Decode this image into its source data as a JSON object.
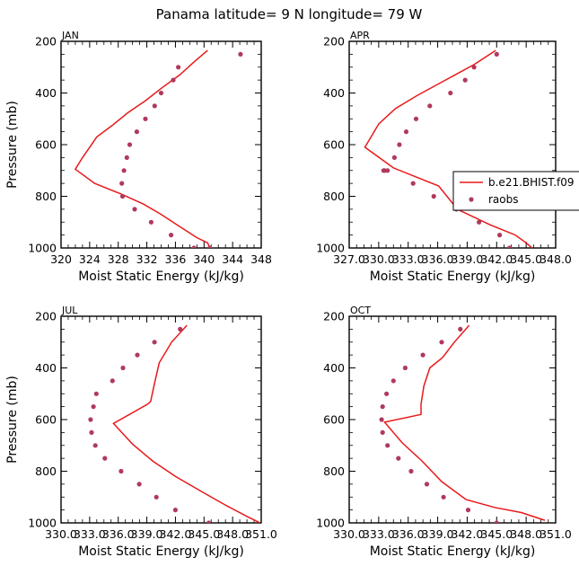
{
  "figure": {
    "title": "Panama   latitude= 9 N longitude= 79 W"
  },
  "colors": {
    "model_line": "#e8191b",
    "raobs_marker": "#b03a5b",
    "axis": "#000000"
  },
  "chart_data": [
    {
      "type": "line",
      "panel_label": "JAN",
      "xlabel": "Moist Static Energy (kJ/kg)",
      "ylabel": "Pressure (mb)",
      "xlim": [
        320,
        348
      ],
      "ylim": [
        1000,
        200
      ],
      "x_ticks": [
        "320",
        "324",
        "328",
        "332",
        "336",
        "340",
        "344",
        "348"
      ],
      "y_ticks": [
        "200",
        "400",
        "600",
        "800",
        "1000"
      ],
      "series": [
        {
          "name": "b.e21.BHIST.f09",
          "style": "line",
          "x": [
            340.5,
            338.8,
            336.6,
            334.1,
            331.8,
            329.4,
            327.2,
            325.0,
            324.0,
            323.0,
            322.0,
            324.7,
            328.3,
            331.5,
            334.0,
            336.2,
            339.0,
            340.5,
            340.8
          ],
          "y": [
            235,
            275,
            330,
            380,
            430,
            475,
            525,
            570,
            610,
            650,
            695,
            750,
            790,
            830,
            870,
            910,
            960,
            980,
            1000
          ]
        },
        {
          "name": "raobs",
          "style": "markers",
          "x": [
            345.1,
            336.4,
            335.7,
            334.0,
            333.1,
            331.8,
            330.6,
            329.6,
            329.2,
            328.8,
            328.5,
            328.6,
            330.3,
            332.6,
            335.4,
            338.6,
            340.8
          ],
          "y": [
            250,
            300,
            350,
            400,
            450,
            500,
            550,
            600,
            650,
            700,
            750,
            800,
            850,
            900,
            950,
            1000,
            1000
          ]
        }
      ]
    },
    {
      "type": "line",
      "panel_label": "APR",
      "xlabel": "Moist Static Energy (kJ/kg)",
      "ylabel": "",
      "xlim": [
        327,
        348
      ],
      "ylim": [
        1000,
        200
      ],
      "x_ticks": [
        "327.0",
        "330.0",
        "333.0",
        "336.0",
        "339.0",
        "342.0",
        "345.0",
        "348.0"
      ],
      "y_ticks": [
        "200",
        "400",
        "600",
        "800",
        "1000"
      ],
      "series": [
        {
          "name": "b.e21.BHIST.f09",
          "style": "line",
          "x": [
            341.9,
            339.7,
            336.8,
            333.9,
            331.7,
            330.0,
            328.6,
            331.5,
            336.1,
            338.0,
            341.3,
            343.9,
            345.0,
            345.6
          ],
          "y": [
            235,
            290,
            350,
            410,
            460,
            520,
            610,
            690,
            760,
            850,
            910,
            950,
            980,
            1000
          ]
        },
        {
          "name": "raobs",
          "style": "markers",
          "x": [
            342.0,
            339.7,
            338.8,
            337.3,
            335.2,
            333.8,
            332.8,
            332.1,
            331.6,
            330.9,
            330.5,
            330.6,
            333.5,
            335.6,
            337.9,
            340.2,
            342.3,
            343.3
          ],
          "y": [
            250,
            300,
            350,
            400,
            450,
            500,
            550,
            600,
            650,
            700,
            700,
            700,
            750,
            800,
            850,
            900,
            950,
            1000
          ]
        }
      ],
      "legend": {
        "placement": "right",
        "entries": [
          "b.e21.BHIST.f09",
          "raobs"
        ]
      }
    },
    {
      "type": "line",
      "panel_label": "JUL",
      "xlabel": "Moist Static Energy (kJ/kg)",
      "ylabel": "Pressure (mb)",
      "xlim": [
        330.0,
        351.0
      ],
      "ylim": [
        1000,
        200
      ],
      "x_ticks": [
        "330.0",
        "333.0",
        "336.0",
        "339.0",
        "342.0",
        "345.0",
        "348.0",
        "351.0"
      ],
      "y_ticks": [
        "200",
        "400",
        "600",
        "800",
        "1000"
      ],
      "series": [
        {
          "name": "b.e21.BHIST.f09",
          "style": "line",
          "x": [
            343.2,
            341.6,
            340.3,
            339.8,
            339.4,
            339.1,
            335.5,
            337.5,
            339.6,
            342.0,
            344.8,
            347.2,
            349.5,
            350.9
          ],
          "y": [
            235,
            300,
            380,
            460,
            530,
            540,
            615,
            695,
            760,
            820,
            880,
            930,
            975,
            1000
          ]
        },
        {
          "name": "raobs",
          "style": "markers",
          "x": [
            342.5,
            339.8,
            338.0,
            336.5,
            335.4,
            333.7,
            333.4,
            333.1,
            333.2,
            333.6,
            334.6,
            336.3,
            338.2,
            340.0,
            342.0,
            345.5
          ],
          "y": [
            250,
            300,
            350,
            400,
            450,
            500,
            550,
            600,
            650,
            700,
            750,
            800,
            850,
            900,
            950,
            1000
          ]
        }
      ]
    },
    {
      "type": "line",
      "panel_label": "OCT",
      "xlabel": "Moist Static Energy (kJ/kg)",
      "ylabel": "",
      "xlim": [
        330.0,
        351.0
      ],
      "ylim": [
        1000,
        200
      ],
      "x_ticks": [
        "330.0",
        "333.0",
        "336.0",
        "339.0",
        "342.0",
        "345.0",
        "348.0",
        "351.0"
      ],
      "y_ticks": [
        "200",
        "400",
        "600",
        "800",
        "1000"
      ],
      "series": [
        {
          "name": "b.e21.BHIST.f09",
          "style": "line",
          "x": [
            342.2,
            340.7,
            339.5,
            338.2,
            337.6,
            337.3,
            337.3,
            333.6,
            335.4,
            337.4,
            339.4,
            341.9,
            344.8,
            347.5,
            349.9
          ],
          "y": [
            235,
            300,
            360,
            400,
            470,
            540,
            580,
            610,
            690,
            760,
            840,
            910,
            940,
            960,
            990
          ]
        },
        {
          "name": "raobs",
          "style": "markers",
          "x": [
            341.3,
            339.4,
            337.5,
            335.7,
            334.5,
            333.8,
            333.4,
            333.3,
            333.4,
            333.9,
            335.0,
            336.3,
            337.9,
            339.6,
            342.1,
            345.0
          ],
          "y": [
            250,
            300,
            350,
            400,
            450,
            500,
            550,
            600,
            650,
            700,
            750,
            800,
            850,
            900,
            950,
            1000
          ]
        }
      ]
    }
  ]
}
